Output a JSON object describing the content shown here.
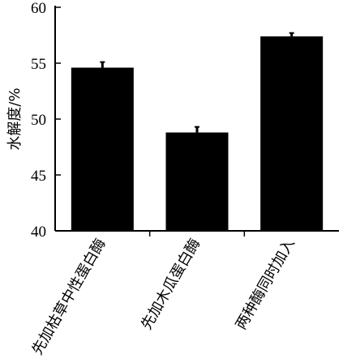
{
  "chart_data": {
    "type": "bar",
    "title": "",
    "xlabel": "",
    "ylabel": "水解度/%",
    "categories": [
      "先加枯草中性蛋白酶",
      "先加木瓜蛋白酶",
      "两种酶同时加入"
    ],
    "values": [
      54.6,
      48.8,
      57.4
    ],
    "errors": [
      0.5,
      0.5,
      0.3
    ],
    "ylim": [
      40,
      60
    ],
    "yticks": [
      40,
      45,
      50,
      55,
      60
    ],
    "grid": false,
    "legend": "none",
    "bar_color": "#000000"
  }
}
